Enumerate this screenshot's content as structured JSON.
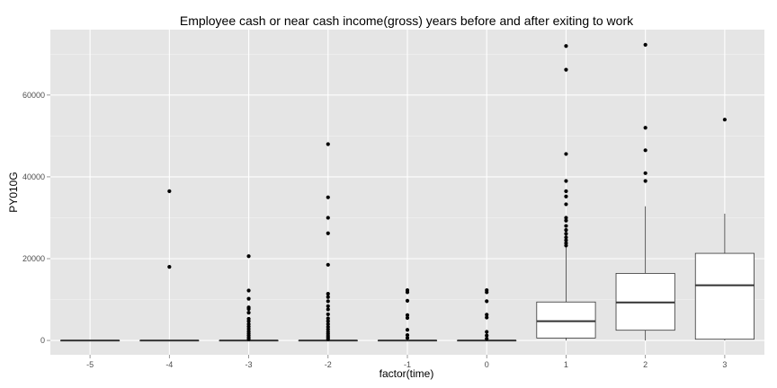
{
  "chart_data": {
    "type": "box",
    "title": "Employee cash or near cash income(gross) years before and after exiting to work",
    "xlabel": "factor(time)",
    "ylabel": "PY010G",
    "categories": [
      "-5",
      "-4",
      "-3",
      "-2",
      "-1",
      "0",
      "1",
      "2",
      "3"
    ],
    "y_ticks": [
      0,
      20000,
      40000,
      60000
    ],
    "y_tick_labels": [
      "0",
      "20000",
      "40000",
      "60000"
    ],
    "ylim": [
      -3500,
      76000
    ],
    "grid": true,
    "legend": "none",
    "colors": {
      "panel": "#e5e5e5",
      "grid_major": "#ffffff",
      "grid_minor": "#f2f2f2",
      "box_fill": "#ffffff",
      "box_stroke": "#333333",
      "outlier": "#000000"
    },
    "boxes": [
      {
        "category": "-5",
        "min": 0,
        "q1": 0,
        "median": 0,
        "q3": 0,
        "max": 0,
        "outliers": []
      },
      {
        "category": "-4",
        "min": 0,
        "q1": 0,
        "median": 0,
        "q3": 0,
        "max": 0,
        "outliers": [
          18000,
          36500
        ]
      },
      {
        "category": "-3",
        "min": 0,
        "q1": 0,
        "median": 0,
        "q3": 0,
        "max": 0,
        "outliers": [
          300,
          700,
          1200,
          1700,
          2200,
          2800,
          3400,
          4000,
          4700,
          5300,
          6800,
          7700,
          8100,
          10200,
          12200,
          20600
        ]
      },
      {
        "category": "-2",
        "min": 0,
        "q1": 0,
        "median": 0,
        "q3": 0,
        "max": 0,
        "outliers": [
          300,
          700,
          1100,
          1600,
          2100,
          2700,
          3300,
          4000,
          4700,
          5400,
          6400,
          7600,
          8400,
          9600,
          10600,
          11400,
          18500,
          26200,
          30000,
          35000,
          48000
        ]
      },
      {
        "category": "-1",
        "min": 0,
        "q1": 0,
        "median": 0,
        "q3": 0,
        "max": 0,
        "outliers": [
          600,
          1300,
          2600,
          5500,
          6200,
          9700,
          11800,
          12300
        ]
      },
      {
        "category": "0",
        "min": 0,
        "q1": 0,
        "median": 0,
        "q3": 0,
        "max": 0,
        "outliers": [
          400,
          1200,
          2100,
          5600,
          6300,
          9600,
          11800,
          12300
        ]
      },
      {
        "category": "1",
        "min": 0,
        "q1": 600,
        "median": 4700,
        "q3": 9400,
        "max": 22800,
        "outliers": [
          23200,
          23800,
          24500,
          25200,
          26100,
          27000,
          28000,
          29300,
          30000,
          33300,
          35200,
          36500,
          39000,
          45600,
          66200,
          72000
        ]
      },
      {
        "category": "2",
        "min": 0,
        "q1": 2500,
        "median": 9300,
        "q3": 16400,
        "max": 32800,
        "outliers": [
          39000,
          40900,
          46500,
          52000,
          72300
        ]
      },
      {
        "category": "3",
        "min": 0,
        "q1": 300,
        "median": 13500,
        "q3": 21300,
        "max": 31000,
        "outliers": [
          54000
        ]
      }
    ]
  }
}
